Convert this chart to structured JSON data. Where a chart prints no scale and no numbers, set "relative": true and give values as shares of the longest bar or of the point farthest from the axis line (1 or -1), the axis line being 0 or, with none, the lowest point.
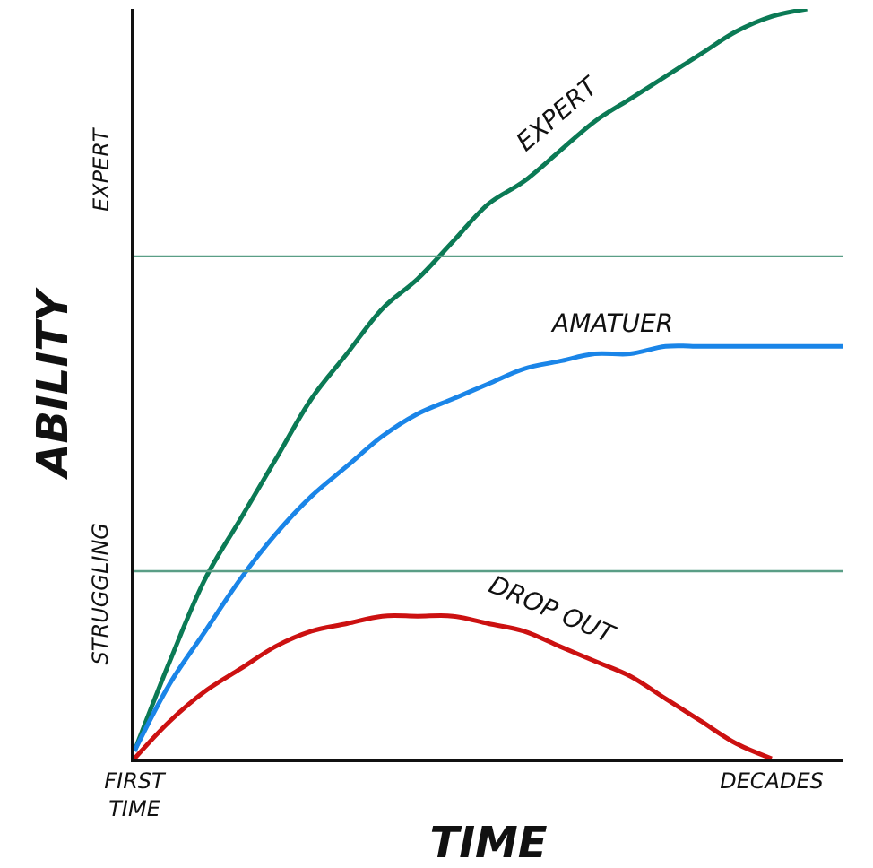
{
  "chart_data": {
    "type": "line",
    "relative": true,
    "xlabel": "TIME",
    "ylabel": "ABILITY",
    "categories": [
      "FIRST TIME",
      null,
      null,
      null,
      null,
      null,
      null,
      null,
      null,
      null,
      null,
      null,
      null,
      null,
      null,
      null,
      null,
      null,
      "DECADES",
      null,
      null
    ],
    "series": [
      {
        "name": "EXPERT",
        "color": "#0b7a55",
        "values": [
          0.01,
          0.13,
          0.24,
          0.32,
          0.4,
          0.48,
          0.54,
          0.6,
          0.64,
          0.69,
          0.74,
          0.77,
          0.81,
          0.85,
          0.88,
          0.91,
          0.94,
          0.97,
          0.99,
          1.0,
          null
        ]
      },
      {
        "name": "AMATUER",
        "color": "#1a85e8",
        "values": [
          0.01,
          0.1,
          0.17,
          0.24,
          0.3,
          0.35,
          0.39,
          0.43,
          0.46,
          0.48,
          0.5,
          0.52,
          0.53,
          0.54,
          0.54,
          0.55,
          0.55,
          0.55,
          0.55,
          0.55,
          0.55
        ]
      },
      {
        "name": "DROP OUT",
        "color": "#cc1111",
        "values": [
          0.0,
          0.05,
          0.09,
          0.12,
          0.15,
          0.17,
          0.18,
          0.19,
          0.19,
          0.19,
          0.18,
          0.17,
          0.15,
          0.13,
          0.11,
          0.08,
          0.05,
          0.02,
          0.0,
          null,
          null
        ]
      }
    ],
    "ref_lines": [
      {
        "axis": "y",
        "value": 0.67,
        "color": "#5a9e86"
      },
      {
        "axis": "y",
        "value": 0.25,
        "color": "#5a9e86"
      }
    ],
    "annotations": [
      "STRUGGLING",
      "EXPERT"
    ],
    "legend": false,
    "marker": "none",
    "line_style": "solid"
  }
}
